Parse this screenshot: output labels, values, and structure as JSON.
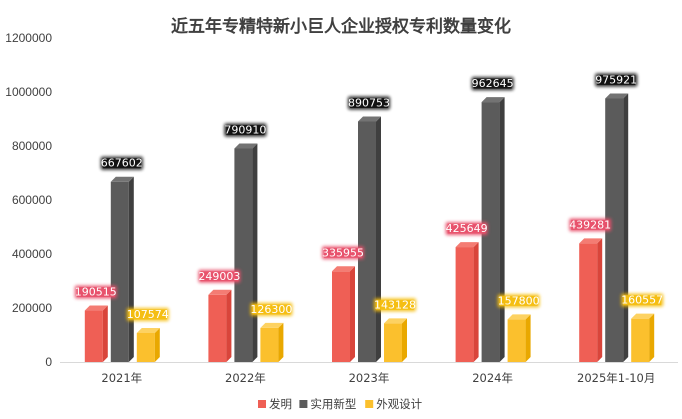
{
  "chart_data": {
    "type": "bar",
    "title": "近五年专精特新小巨人企业授权专利数量变化",
    "xlabel": "",
    "ylabel": "",
    "ylim": [
      0,
      1200000
    ],
    "yticks": [
      0,
      200000,
      400000,
      600000,
      800000,
      1000000,
      1200000
    ],
    "ytick_labels": [
      "0",
      "200000",
      "400000",
      "600000",
      "800000",
      "1000000",
      "1200000"
    ],
    "categories": [
      "2021年",
      "2022年",
      "2023年",
      "2024年",
      "2025年1-10月"
    ],
    "series": [
      {
        "name": "发明",
        "color": "#ef5f55",
        "side_color": "#d9453b",
        "top_color": "#f47c73",
        "label_bg": "#e8506a",
        "values": [
          190515,
          249003,
          335955,
          425649,
          439281
        ]
      },
      {
        "name": "实用新型",
        "color": "#5b5b5b",
        "side_color": "#3f3f3f",
        "top_color": "#737373",
        "label_bg": "#111111",
        "values": [
          667602,
          790910,
          890753,
          962645,
          975921
        ]
      },
      {
        "name": "外观设计",
        "color": "#fbc02d",
        "side_color": "#e9a800",
        "top_color": "#fdd262",
        "label_bg": "#f5bd0f",
        "values": [
          107574,
          126300,
          143128,
          157800,
          160557
        ]
      }
    ],
    "data_labels": true,
    "grid": false,
    "legend_position": "bottom-center",
    "style": "3d-column"
  }
}
